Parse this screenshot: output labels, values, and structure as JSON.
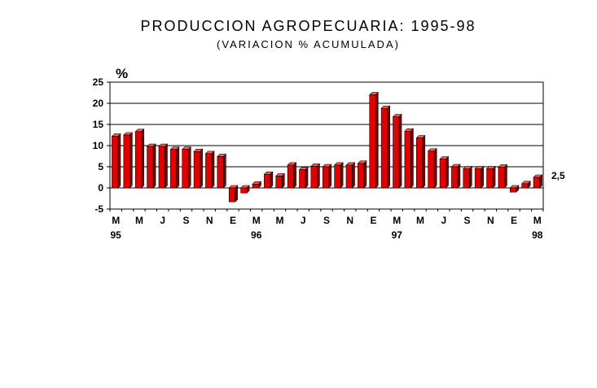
{
  "chart_data": {
    "type": "bar",
    "title": "PRODUCCION AGROPECUARIA: 1995-98",
    "subtitle": "(VARIACION % ACUMULADA)",
    "ylabel": "%",
    "xlabel": "",
    "ylim": [
      -5,
      25
    ],
    "yticks": [
      25,
      20,
      15,
      10,
      5,
      0,
      -5
    ],
    "grid": true,
    "legend": "none",
    "bar_color": "#e00000",
    "bar_side_color": "#7a0000",
    "bar_top_color": "#ff5a5a",
    "categories": [
      "Mar-95",
      "Abr-95",
      "May-95",
      "Jun-95",
      "Jul-95",
      "Ago-95",
      "Sep-95",
      "Oct-95",
      "Nov-95",
      "Dic-95",
      "Ene-96",
      "Feb-96",
      "Mar-96",
      "Abr-96",
      "May-96",
      "Jun-96",
      "Jul-96",
      "Ago-96",
      "Sep-96",
      "Oct-96",
      "Nov-96",
      "Dic-96",
      "Ene-97",
      "Feb-97",
      "Mar-97",
      "Abr-97",
      "May-97",
      "Jun-97",
      "Jul-97",
      "Ago-97",
      "Sep-97",
      "Oct-97",
      "Nov-97",
      "Dic-97",
      "Ene-98",
      "Feb-98",
      "Mar-98"
    ],
    "values": [
      12.2,
      12.5,
      13.3,
      9.8,
      9.8,
      9.1,
      9.1,
      8.6,
      8.1,
      7.4,
      -3.3,
      -1.2,
      0.9,
      3.2,
      2.8,
      5.4,
      4.3,
      5.1,
      5.0,
      5.4,
      5.4,
      5.8,
      22.0,
      18.8,
      16.8,
      13.4,
      11.8,
      8.7,
      6.8,
      5.0,
      4.5,
      4.5,
      4.5,
      4.9,
      -1.0,
      1.0,
      2.5
    ],
    "x_tick_labels": [
      {
        "index": 0,
        "label": "M",
        "year": "95"
      },
      {
        "index": 2,
        "label": "M"
      },
      {
        "index": 4,
        "label": "J"
      },
      {
        "index": 6,
        "label": "S"
      },
      {
        "index": 8,
        "label": "N"
      },
      {
        "index": 10,
        "label": "E"
      },
      {
        "index": 12,
        "label": "M",
        "year": "96"
      },
      {
        "index": 14,
        "label": "M"
      },
      {
        "index": 16,
        "label": "J"
      },
      {
        "index": 18,
        "label": "S"
      },
      {
        "index": 20,
        "label": "N"
      },
      {
        "index": 22,
        "label": "E"
      },
      {
        "index": 24,
        "label": "M",
        "year": "97"
      },
      {
        "index": 26,
        "label": "M"
      },
      {
        "index": 28,
        "label": "J"
      },
      {
        "index": 30,
        "label": "S"
      },
      {
        "index": 32,
        "label": "N"
      },
      {
        "index": 34,
        "label": "E"
      },
      {
        "index": 36,
        "label": "M",
        "year": "98"
      }
    ],
    "annotations": [
      {
        "index": 36,
        "text": "2,5"
      }
    ]
  }
}
